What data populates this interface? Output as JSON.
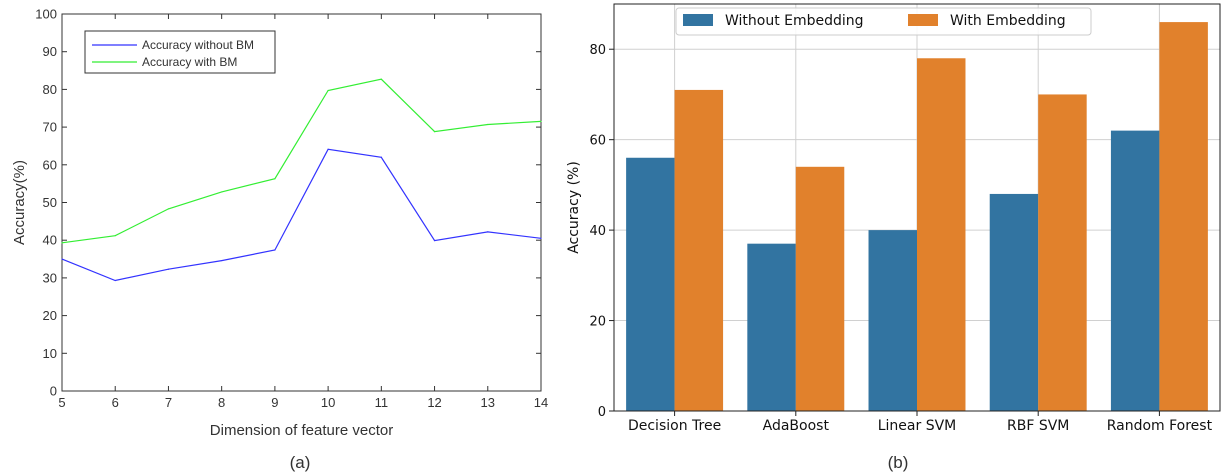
{
  "chart_data": [
    {
      "type": "line",
      "caption": "(a)",
      "xlabel": "Dimension of feature vector",
      "ylabel": "Accuracy(%)",
      "xlim": [
        5,
        14
      ],
      "ylim": [
        0,
        100
      ],
      "xticks": [
        5,
        6,
        7,
        8,
        9,
        10,
        11,
        12,
        13,
        14
      ],
      "yticks": [
        0,
        10,
        20,
        30,
        40,
        50,
        60,
        70,
        80,
        90,
        100
      ],
      "grid": false,
      "legend_position": "top-left",
      "x": [
        5,
        6,
        7,
        8,
        9,
        10,
        11,
        12,
        13,
        14
      ],
      "series": [
        {
          "name": "Accuracy without BM",
          "color": "#3333ff",
          "values": [
            35.0,
            29.3,
            32.3,
            34.6,
            37.4,
            64.1,
            62.0,
            39.9,
            42.2,
            40.5
          ]
        },
        {
          "name": "Accuracy with BM",
          "color": "#33ee33",
          "values": [
            39.3,
            41.2,
            48.3,
            52.8,
            56.3,
            79.7,
            82.7,
            68.8,
            70.7,
            71.5
          ]
        }
      ]
    },
    {
      "type": "bar",
      "caption": "(b)",
      "xlabel": "",
      "ylabel": "Accuracy (%)",
      "ylim": [
        0,
        90
      ],
      "yticks": [
        0,
        20,
        40,
        60,
        80
      ],
      "grid": true,
      "legend_position": "top",
      "categories": [
        "Decision Tree",
        "AdaBoost",
        "Linear SVM",
        "RBF SVM",
        "Random Forest"
      ],
      "series": [
        {
          "name": "Without Embedding",
          "color": "#3274a1",
          "values": [
            56,
            37,
            40,
            48,
            62
          ]
        },
        {
          "name": "With Embedding",
          "color": "#e1812c",
          "values": [
            71,
            54,
            78,
            70,
            86
          ]
        }
      ]
    }
  ]
}
